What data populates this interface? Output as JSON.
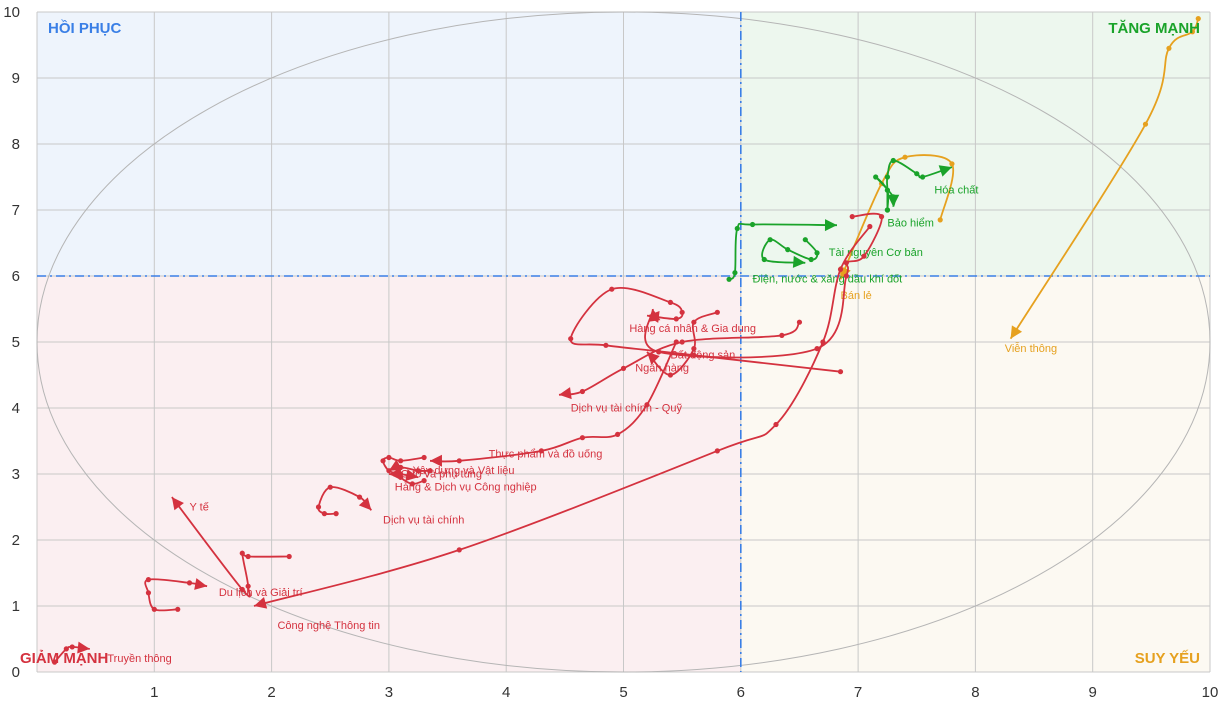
{
  "chart_data": {
    "type": "line",
    "xlim": [
      0,
      10
    ],
    "ylim": [
      0,
      10
    ],
    "x_ticks": [
      "1",
      "2",
      "3",
      "4",
      "5",
      "6",
      "7",
      "8",
      "9",
      "10"
    ],
    "y_ticks": [
      "0",
      "1",
      "2",
      "3",
      "4",
      "5",
      "6",
      "7",
      "8",
      "9",
      "10"
    ],
    "thresholds": {
      "x": 6,
      "y": 6
    },
    "grid": true,
    "quadrants": {
      "top_left": "HỒI PHỤC",
      "top_right": "TĂNG MẠNH",
      "bottom_left": "GIẢM MẠNH",
      "bottom_right": "SUY YẾU"
    },
    "colors": {
      "tang_manh": "#1aa32a",
      "hoi_phuc": "#3a7fe6",
      "giam_manh": "#d4323f",
      "suy_yeu": "#e6a11f",
      "threshold_line": "#3a7fe6",
      "quad_top_left": "#eef4fc",
      "quad_top_right": "#edf7ee",
      "quad_bottom_left": "#fbeff1",
      "quad_bottom_right": "#fcf9f2"
    },
    "series": [
      {
        "name": "Viễn thông",
        "group": "suy_yeu",
        "points": [
          [
            9.9,
            9.9
          ],
          [
            9.85,
            9.7
          ],
          [
            9.65,
            9.45
          ],
          [
            9.45,
            8.3
          ],
          [
            8.3,
            5.05
          ]
        ],
        "label_at": [
          8.25,
          4.85
        ]
      },
      {
        "name": "Bán lẻ",
        "group": "suy_yeu",
        "points": [
          [
            7.7,
            6.85
          ],
          [
            7.8,
            7.7
          ],
          [
            7.4,
            7.8
          ],
          [
            7.2,
            7.4
          ],
          [
            6.85,
            5.95
          ]
        ],
        "label_at": [
          6.85,
          5.65
        ]
      },
      {
        "name": "Hóa chất",
        "group": "tang_manh",
        "points": [
          [
            7.25,
            7.0
          ],
          [
            7.25,
            7.3
          ],
          [
            7.25,
            7.5
          ],
          [
            7.3,
            7.75
          ],
          [
            7.5,
            7.55
          ],
          [
            7.55,
            7.5
          ],
          [
            7.8,
            7.65
          ]
        ],
        "label_at": [
          7.65,
          7.25
        ]
      },
      {
        "name": "Bảo hiểm",
        "group": "tang_manh",
        "points": [
          [
            7.25,
            7.0
          ],
          [
            7.25,
            7.3
          ],
          [
            7.15,
            7.5
          ],
          [
            7.3,
            7.2
          ],
          [
            7.3,
            7.05
          ]
        ],
        "label_at": [
          7.25,
          6.75
        ]
      },
      {
        "name": "Tài nguyên Cơ bản",
        "group": "tang_manh",
        "points": [
          [
            6.55,
            6.55
          ],
          [
            6.65,
            6.35
          ],
          [
            6.6,
            6.25
          ],
          [
            6.4,
            6.4
          ],
          [
            6.25,
            6.55
          ],
          [
            6.2,
            6.25
          ],
          [
            6.55,
            6.2
          ]
        ],
        "label_at": [
          6.75,
          6.3
        ]
      },
      {
        "name": "Điện, nước & xăng dầu khí đốt",
        "group": "tang_manh",
        "points": [
          [
            5.9,
            5.95
          ],
          [
            5.95,
            6.05
          ],
          [
            5.97,
            6.72
          ],
          [
            6.1,
            6.78
          ],
          [
            6.82,
            6.77
          ]
        ],
        "label_at": [
          6.1,
          5.9
        ]
      },
      {
        "name": "Hàng cá nhân & Gia dụng",
        "group": "giam_manh",
        "points": [
          [
            6.95,
            6.9
          ],
          [
            7.2,
            6.9
          ],
          [
            7.05,
            6.3
          ],
          [
            6.9,
            6.2
          ],
          [
            6.9,
            6.0
          ],
          [
            6.65,
            4.9
          ],
          [
            5.3,
            4.85
          ],
          [
            5.25,
            5.5
          ]
        ],
        "label_at": [
          5.05,
          5.15
        ]
      },
      {
        "name": "Bất động sản",
        "group": "giam_manh",
        "points": [
          [
            6.85,
            4.55
          ],
          [
            5.6,
            4.8
          ],
          [
            4.85,
            4.95
          ],
          [
            4.55,
            5.05
          ],
          [
            4.9,
            5.8
          ],
          [
            5.4,
            5.6
          ],
          [
            5.5,
            5.45
          ],
          [
            5.45,
            5.35
          ],
          [
            5.2,
            5.4
          ]
        ],
        "label_at": [
          5.4,
          4.75
        ]
      },
      {
        "name": "Ngân hàng",
        "group": "giam_manh",
        "points": [
          [
            5.8,
            5.45
          ],
          [
            5.6,
            5.3
          ],
          [
            5.6,
            4.9
          ],
          [
            5.4,
            4.5
          ],
          [
            5.2,
            4.85
          ]
        ],
        "label_at": [
          5.1,
          4.55
        ]
      },
      {
        "name": "Dịch vụ tài chính - Quỹ",
        "group": "giam_manh",
        "points": [
          [
            6.5,
            5.3
          ],
          [
            6.35,
            5.1
          ],
          [
            5.5,
            5.0
          ],
          [
            5.0,
            4.6
          ],
          [
            4.65,
            4.25
          ],
          [
            4.45,
            4.2
          ]
        ],
        "label_at": [
          4.55,
          3.95
        ]
      },
      {
        "name": "Thực phẩm và đồ uống",
        "group": "giam_manh",
        "points": [
          [
            5.45,
            5.0
          ],
          [
            5.2,
            4.05
          ],
          [
            4.95,
            3.6
          ],
          [
            4.65,
            3.55
          ],
          [
            4.3,
            3.35
          ],
          [
            3.6,
            3.2
          ],
          [
            3.35,
            3.2
          ]
        ],
        "label_at": [
          3.85,
          3.25
        ]
      },
      {
        "name": "Ô tô và phụ tùng",
        "group": "giam_manh",
        "points": [
          [
            3.3,
            3.25
          ],
          [
            3.1,
            3.2
          ],
          [
            3.0,
            3.25
          ],
          [
            2.95,
            3.2
          ],
          [
            3.0,
            3.05
          ],
          [
            3.1,
            3.0
          ],
          [
            3.25,
            2.95
          ]
        ],
        "label_at": [
          3.1,
          2.95
        ]
      },
      {
        "name": "Xây dựng và Vật liệu",
        "group": "giam_manh",
        "points": [
          [
            3.35,
            3.05
          ],
          [
            3.25,
            3.05
          ],
          [
            3.1,
            3.1
          ],
          [
            3.05,
            3.0
          ],
          [
            3.0,
            3.0
          ]
        ],
        "label_at": [
          3.2,
          3.0
        ]
      },
      {
        "name": "Hàng & Dịch vụ Công nghiệp",
        "group": "giam_manh",
        "points": [
          [
            3.3,
            2.9
          ],
          [
            3.2,
            2.85
          ],
          [
            3.1,
            2.95
          ],
          [
            3.05,
            3.1
          ],
          [
            3.0,
            3.05
          ]
        ],
        "label_at": [
          3.05,
          2.75
        ]
      },
      {
        "name": "Dịch vụ tài chính",
        "group": "giam_manh",
        "points": [
          [
            2.55,
            2.4
          ],
          [
            2.45,
            2.4
          ],
          [
            2.4,
            2.5
          ],
          [
            2.5,
            2.8
          ],
          [
            2.75,
            2.65
          ],
          [
            2.85,
            2.45
          ]
        ],
        "label_at": [
          2.95,
          2.25
        ]
      },
      {
        "name": "Y tế",
        "group": "giam_manh",
        "points": [
          [
            2.15,
            1.75
          ],
          [
            1.8,
            1.75
          ],
          [
            1.75,
            1.8
          ],
          [
            1.8,
            1.3
          ],
          [
            1.75,
            1.25
          ],
          [
            1.15,
            2.65
          ]
        ],
        "label_at": [
          1.3,
          2.45
        ]
      },
      {
        "name": "Du lịch và Giải trí",
        "group": "giam_manh",
        "points": [
          [
            1.2,
            0.95
          ],
          [
            1.0,
            0.95
          ],
          [
            0.95,
            1.2
          ],
          [
            0.95,
            1.4
          ],
          [
            1.3,
            1.35
          ],
          [
            1.45,
            1.3
          ]
        ],
        "label_at": [
          1.55,
          1.15
        ]
      },
      {
        "name": "Công nghệ Thông tin",
        "group": "giam_manh",
        "points": [
          [
            7.1,
            6.75
          ],
          [
            6.85,
            6.1
          ],
          [
            6.7,
            5.0
          ],
          [
            6.3,
            3.75
          ],
          [
            5.8,
            3.35
          ],
          [
            3.6,
            1.85
          ],
          [
            1.85,
            1.0
          ]
        ],
        "label_at": [
          2.05,
          0.65
        ]
      },
      {
        "name": "Truyền thông",
        "group": "giam_manh",
        "points": [
          [
            0.15,
            0.15
          ],
          [
            0.25,
            0.35
          ],
          [
            0.3,
            0.38
          ],
          [
            0.45,
            0.35
          ]
        ],
        "label_at": [
          0.6,
          0.15
        ]
      }
    ]
  }
}
